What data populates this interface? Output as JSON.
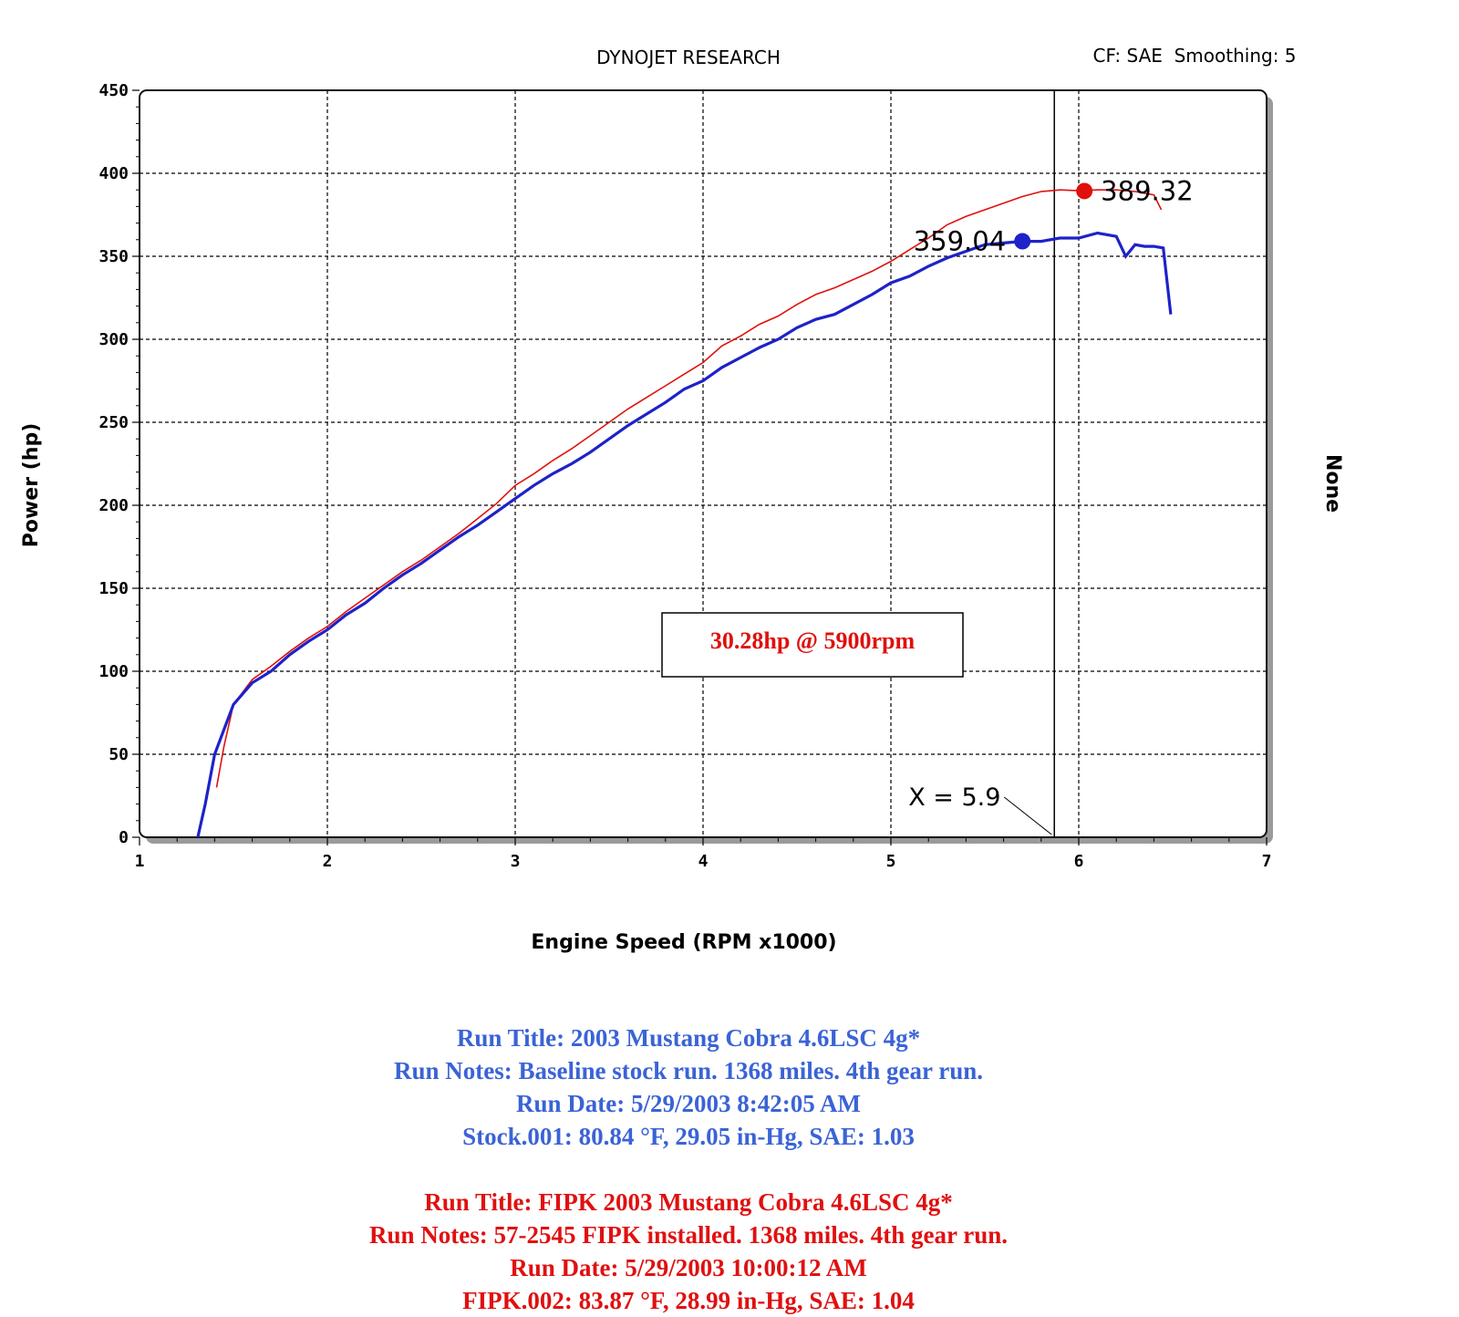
{
  "header": {
    "title": "DYNOJET RESEARCH",
    "settings": "CF: SAE  Smoothing: 5"
  },
  "colors": {
    "baseline": "#1e22c8",
    "fipk": "#e0100c",
    "notes_blue": "#3a63d6",
    "notes_red": "#e01010"
  },
  "chart_data": {
    "type": "line",
    "xlabel": "Engine Speed (RPM x1000)",
    "ylabel": "Power (hp)",
    "right_axis_label": "None",
    "xlim": [
      1,
      7
    ],
    "ylim": [
      0,
      450
    ],
    "x_ticks": [
      "1",
      "2",
      "3",
      "4",
      "5",
      "6",
      "7"
    ],
    "y_ticks": [
      "0",
      "50",
      "100",
      "150",
      "200",
      "250",
      "300",
      "350",
      "400",
      "450"
    ],
    "grid": true,
    "cursor": {
      "x": 5.87,
      "label": "X = 5.9"
    },
    "annotation_box": "30.28hp @ 5900rpm",
    "series": [
      {
        "key": "fipk",
        "color": "#e0100c",
        "peak": {
          "x": 6.03,
          "y": 389.32,
          "label": "389.32"
        },
        "points": [
          [
            1.41,
            30
          ],
          [
            1.45,
            55
          ],
          [
            1.5,
            80
          ],
          [
            1.6,
            95
          ],
          [
            1.7,
            103
          ],
          [
            1.8,
            112
          ],
          [
            1.9,
            120
          ],
          [
            2.0,
            127
          ],
          [
            2.1,
            136
          ],
          [
            2.2,
            144
          ],
          [
            2.3,
            152
          ],
          [
            2.4,
            160
          ],
          [
            2.5,
            167
          ],
          [
            2.6,
            175
          ],
          [
            2.7,
            183
          ],
          [
            2.8,
            192
          ],
          [
            2.9,
            201
          ],
          [
            3.0,
            212
          ],
          [
            3.1,
            219
          ],
          [
            3.2,
            227
          ],
          [
            3.3,
            234
          ],
          [
            3.4,
            242
          ],
          [
            3.5,
            250
          ],
          [
            3.6,
            258
          ],
          [
            3.7,
            265
          ],
          [
            3.8,
            272
          ],
          [
            3.9,
            279
          ],
          [
            4.0,
            286
          ],
          [
            4.1,
            296
          ],
          [
            4.2,
            302
          ],
          [
            4.3,
            309
          ],
          [
            4.4,
            314
          ],
          [
            4.5,
            321
          ],
          [
            4.6,
            327
          ],
          [
            4.7,
            331
          ],
          [
            4.8,
            336
          ],
          [
            4.9,
            341
          ],
          [
            5.0,
            347
          ],
          [
            5.1,
            354
          ],
          [
            5.2,
            361
          ],
          [
            5.3,
            369
          ],
          [
            5.4,
            374
          ],
          [
            5.5,
            378
          ],
          [
            5.6,
            382
          ],
          [
            5.7,
            386
          ],
          [
            5.8,
            389
          ],
          [
            5.9,
            390
          ],
          [
            6.0,
            389.5
          ],
          [
            6.1,
            390
          ],
          [
            6.2,
            390
          ],
          [
            6.3,
            389
          ],
          [
            6.4,
            387
          ],
          [
            6.44,
            378
          ]
        ]
      },
      {
        "key": "baseline",
        "color": "#1e22c8",
        "peak": {
          "x": 5.7,
          "y": 359.04,
          "label": "359.04"
        },
        "points": [
          [
            1.31,
            0
          ],
          [
            1.35,
            20
          ],
          [
            1.4,
            50
          ],
          [
            1.45,
            65
          ],
          [
            1.5,
            80
          ],
          [
            1.6,
            93
          ],
          [
            1.7,
            100
          ],
          [
            1.8,
            110
          ],
          [
            1.9,
            118
          ],
          [
            2.0,
            125
          ],
          [
            2.1,
            134
          ],
          [
            2.2,
            141
          ],
          [
            2.3,
            150
          ],
          [
            2.4,
            158
          ],
          [
            2.5,
            165
          ],
          [
            2.6,
            173
          ],
          [
            2.7,
            181
          ],
          [
            2.8,
            188
          ],
          [
            2.9,
            196
          ],
          [
            3.0,
            204
          ],
          [
            3.1,
            212
          ],
          [
            3.2,
            219
          ],
          [
            3.3,
            225
          ],
          [
            3.4,
            232
          ],
          [
            3.5,
            240
          ],
          [
            3.6,
            248
          ],
          [
            3.7,
            255
          ],
          [
            3.8,
            262
          ],
          [
            3.9,
            270
          ],
          [
            4.0,
            275
          ],
          [
            4.1,
            283
          ],
          [
            4.2,
            289
          ],
          [
            4.3,
            295
          ],
          [
            4.4,
            300
          ],
          [
            4.5,
            307
          ],
          [
            4.6,
            312
          ],
          [
            4.7,
            315
          ],
          [
            4.8,
            321
          ],
          [
            4.9,
            327
          ],
          [
            5.0,
            334
          ],
          [
            5.1,
            338
          ],
          [
            5.2,
            344
          ],
          [
            5.3,
            349
          ],
          [
            5.4,
            353
          ],
          [
            5.5,
            357
          ],
          [
            5.6,
            358
          ],
          [
            5.7,
            359
          ],
          [
            5.8,
            359
          ],
          [
            5.9,
            361
          ],
          [
            6.0,
            361
          ],
          [
            6.1,
            364
          ],
          [
            6.2,
            362
          ],
          [
            6.25,
            350
          ],
          [
            6.3,
            357
          ],
          [
            6.35,
            356
          ],
          [
            6.4,
            356
          ],
          [
            6.45,
            355
          ],
          [
            6.47,
            335
          ],
          [
            6.49,
            315
          ]
        ]
      }
    ]
  },
  "notes": {
    "baseline": [
      "Run Title: 2003 Mustang Cobra 4.6LSC 4g*",
      "Run Notes: Baseline stock run. 1368 miles. 4th gear run.",
      "Run Date: 5/29/2003 8:42:05 AM",
      "Stock.001: 80.84 °F, 29.05 in-Hg, SAE: 1.03"
    ],
    "fipk": [
      "Run Title: FIPK 2003 Mustang Cobra 4.6LSC 4g*",
      "Run Notes: 57-2545 FIPK installed. 1368 miles. 4th gear run.",
      "Run Date: 5/29/2003 10:00:12 AM",
      "FIPK.002: 83.87 °F, 28.99 in-Hg, SAE: 1.04"
    ]
  }
}
